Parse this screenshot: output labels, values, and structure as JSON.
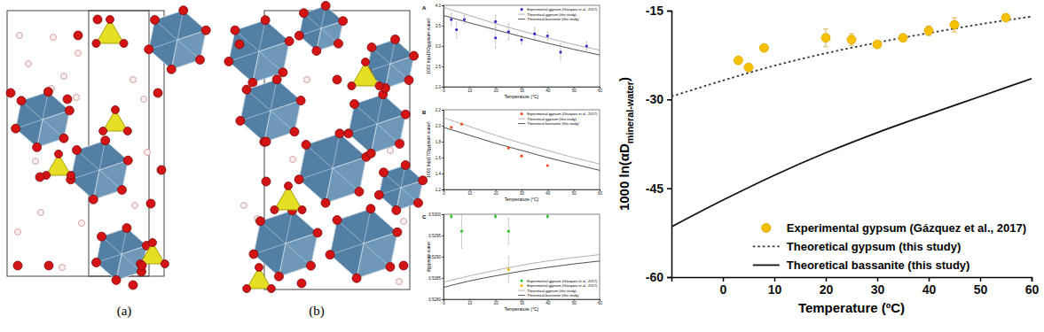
{
  "structures": [
    {
      "label": "(a)"
    },
    {
      "label": "(b)"
    }
  ],
  "chart_data": [
    {
      "type": "scatter",
      "panel_label": "A",
      "xlabel": "Temperature (°C)",
      "ylabel": "1000 ln(α18Ogypsum-water)",
      "xlim": [
        0,
        60
      ],
      "xticks": [
        0,
        10,
        20,
        30,
        40,
        50,
        60
      ],
      "ylim": [
        2,
        4
      ],
      "yticks": [
        {
          "value": 2,
          "label": "2.0"
        },
        2.5,
        {
          "value": 3,
          "label": "3.0"
        },
        3.5,
        {
          "value": 4,
          "label": "4.0"
        }
      ],
      "legend": "upper right",
      "series": [
        {
          "name": "Experimental gypsum (Gázquez et al., 2017)",
          "type": "scatter",
          "marker": "circle",
          "color": "#3030c8",
          "x": [
            3,
            5,
            8,
            20,
            20,
            25,
            30,
            35,
            40,
            45,
            55
          ],
          "values": [
            3.65,
            3.4,
            3.65,
            3.2,
            3.6,
            3.35,
            3.15,
            3.3,
            3.25,
            2.85,
            3.0
          ],
          "errors": [
            0.15,
            0.2,
            0.1,
            0.25,
            0.15,
            0.2,
            0.1,
            0.15,
            0.1,
            0.2,
            0.1
          ]
        },
        {
          "name": "Theoretical gypsum (this study)",
          "type": "line",
          "line_style": "solid",
          "color": "#9a9a9a",
          "x": [
            0,
            10,
            20,
            30,
            40,
            50,
            60
          ],
          "values": [
            3.95,
            3.75,
            3.55,
            3.37,
            3.2,
            3.04,
            2.9
          ]
        },
        {
          "name": "Theoretical bassanite (this study)",
          "type": "line",
          "line_style": "solid",
          "color": "#222222",
          "x": [
            0,
            10,
            20,
            30,
            40,
            50,
            60
          ],
          "values": [
            3.75,
            3.57,
            3.4,
            3.23,
            3.07,
            2.92,
            2.78
          ]
        }
      ]
    },
    {
      "type": "scatter",
      "panel_label": "B",
      "xlabel": "Temperature (°C)",
      "ylabel": "1000 ln(α17Ogypsum-water)",
      "xlim": [
        0,
        60
      ],
      "xticks": [
        0,
        10,
        20,
        30,
        40,
        50,
        60
      ],
      "ylim": [
        1.2,
        2.2
      ],
      "yticks": [
        1.2,
        1.4,
        1.6,
        1.8,
        {
          "value": 2,
          "label": "2.0"
        },
        2.2
      ],
      "legend": "upper right",
      "series": [
        {
          "name": "Experimental gypsum (Gázquez et al., 2017)",
          "type": "scatter",
          "marker": "circle",
          "color": "#f04a1a",
          "x": [
            3,
            7,
            25,
            30,
            40
          ],
          "values": [
            1.98,
            2.02,
            1.72,
            1.62,
            1.5
          ]
        },
        {
          "name": "Theoretical gypsum (this study)",
          "type": "line",
          "line_style": "solid",
          "color": "#9a9a9a",
          "x": [
            0,
            10,
            20,
            30,
            40,
            50,
            60
          ],
          "values": [
            2.1,
            1.99,
            1.88,
            1.78,
            1.69,
            1.6,
            1.52
          ]
        },
        {
          "name": "Theoretical bassanite (this study)",
          "type": "line",
          "line_style": "solid",
          "color": "#222222",
          "x": [
            0,
            10,
            20,
            30,
            40,
            50,
            60
          ],
          "values": [
            1.98,
            1.88,
            1.78,
            1.69,
            1.6,
            1.52,
            1.44
          ]
        }
      ]
    },
    {
      "type": "scatter",
      "panel_label": "C",
      "xlabel": "Temperature (°C)",
      "ylabel": "θgypsum-water",
      "xlim": [
        0,
        60
      ],
      "xticks": [
        0,
        10,
        20,
        30,
        40,
        50,
        60
      ],
      "ylim": [
        0.528,
        0.53
      ],
      "yticks": [
        {
          "value": 0.528,
          "label": "0.5280"
        },
        0.5285,
        {
          "value": 0.529,
          "label": "0.5290"
        },
        0.5295,
        {
          "value": 0.53,
          "label": "0.5300"
        }
      ],
      "legend": "lower right",
      "series": [
        {
          "name": "Experimental gypsum (Gázquez et al., 2017)",
          "type": "scatter",
          "marker": "circle",
          "color": "#2ec82e",
          "x": [
            3,
            7,
            20,
            25,
            40
          ],
          "values": [
            0.52995,
            0.5296,
            0.52995,
            0.5296,
            0.52995
          ],
          "errors": [
            5e-05,
            0.0004,
            5e-05,
            0.0003,
            5e-05
          ]
        },
        {
          "name": "Experimental gypsum (Gázquez et al., 2017)",
          "type": "scatter",
          "marker": "circle",
          "color": "#f5b800",
          "x": [
            25
          ],
          "values": [
            0.5287
          ],
          "errors": [
            0.0003
          ]
        },
        {
          "name": "Theoretical gypsum (this study)",
          "type": "line",
          "line_style": "solid",
          "color": "#9a9a9a",
          "x": [
            0,
            10,
            20,
            30,
            40,
            50,
            60
          ],
          "values": [
            0.5284,
            0.52855,
            0.52868,
            0.5288,
            0.5289,
            0.52898,
            0.52905
          ]
        },
        {
          "name": "Theoretical bassanite (this study)",
          "type": "line",
          "line_style": "solid",
          "color": "#222222",
          "x": [
            0,
            10,
            20,
            30,
            40,
            50,
            60
          ],
          "values": [
            0.52828,
            0.52843,
            0.52855,
            0.52866,
            0.52875,
            0.52883,
            0.5289
          ]
        }
      ]
    },
    {
      "type": "scatter",
      "xlabel": "Temperature (ºC)",
      "ylabel": [
        "1000 ln(αD",
        "mineral-water",
        ")"
      ],
      "xlim": [
        -10,
        60
      ],
      "xticks": [
        0,
        10,
        20,
        30,
        40,
        50,
        60
      ],
      "ylim": [
        -60,
        -15
      ],
      "yticks": [
        -60,
        -45,
        -30,
        -15
      ],
      "legend": "lower right",
      "series": [
        {
          "name": "Experimental gypsum  (Gázquez et al., 2017)",
          "type": "scatter",
          "marker": "circle",
          "color": "#f5c000",
          "x": [
            3,
            5,
            8,
            20,
            25,
            30,
            35,
            40,
            45,
            55
          ],
          "values": [
            -23.4,
            -24.6,
            -21.3,
            -19.6,
            -19.9,
            -20.7,
            -19.6,
            -18.4,
            -17.4,
            -16.2
          ],
          "errors": [
            0.5,
            0.6,
            0.4,
            1.5,
            1.0,
            0.5,
            0.5,
            0.8,
            1.2,
            0.5
          ]
        },
        {
          "name": "Theoretical gypsum (this study)",
          "type": "line",
          "line_style": "dotted",
          "color": "#333333",
          "x": [
            -10,
            0,
            10,
            20,
            30,
            40,
            50,
            60
          ],
          "values": [
            -29.5,
            -26.8,
            -24.3,
            -22.2,
            -20.4,
            -18.8,
            -17.3,
            -16.0
          ]
        },
        {
          "name": "Theoretical bassanite (this study)",
          "type": "line",
          "line_style": "solid",
          "color": "#111111",
          "x": [
            -10,
            0,
            10,
            20,
            30,
            40,
            50,
            60
          ],
          "values": [
            -51.5,
            -47.0,
            -42.8,
            -39.0,
            -35.6,
            -32.5,
            -29.5,
            -26.5
          ]
        }
      ]
    }
  ]
}
